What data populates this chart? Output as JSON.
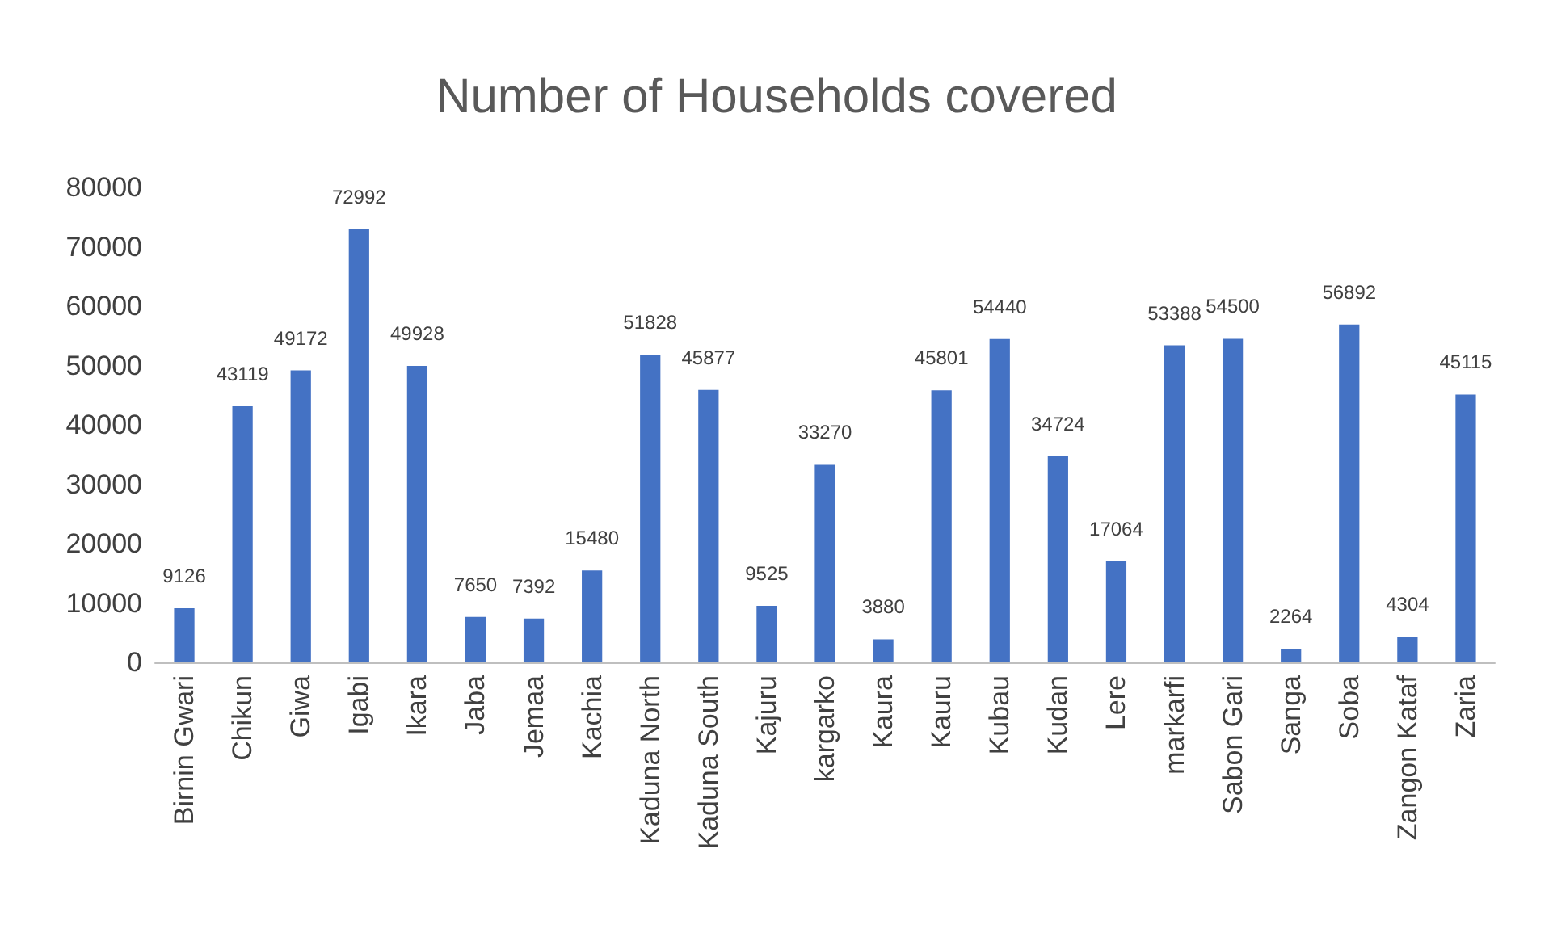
{
  "chart_data": {
    "type": "bar",
    "title": "Number of Households covered",
    "categories": [
      "Birnin Gwari",
      "Chikun",
      "Giwa",
      "Igabi",
      "Ikara",
      "Jaba",
      "Jemaa",
      "Kachia",
      "Kaduna North",
      "Kaduna South",
      "Kajuru",
      "kargarko",
      "Kaura",
      "Kauru",
      "Kubau",
      "Kudan",
      "Lere",
      "markarfi",
      "Sabon Gari",
      "Sanga",
      "Soba",
      "Zangon Kataf",
      "Zaria"
    ],
    "values": [
      9126,
      43119,
      49172,
      72992,
      49928,
      7650,
      7392,
      15480,
      51828,
      45877,
      9525,
      33270,
      3880,
      45801,
      54440,
      34724,
      17064,
      53388,
      54500,
      2264,
      56892,
      4304,
      45115
    ],
    "color": "#4472c4",
    "ylim": [
      0,
      80000
    ],
    "yticks": [
      0,
      10000,
      20000,
      30000,
      40000,
      50000,
      60000,
      70000,
      80000
    ],
    "grid": false,
    "data_labels": true
  }
}
